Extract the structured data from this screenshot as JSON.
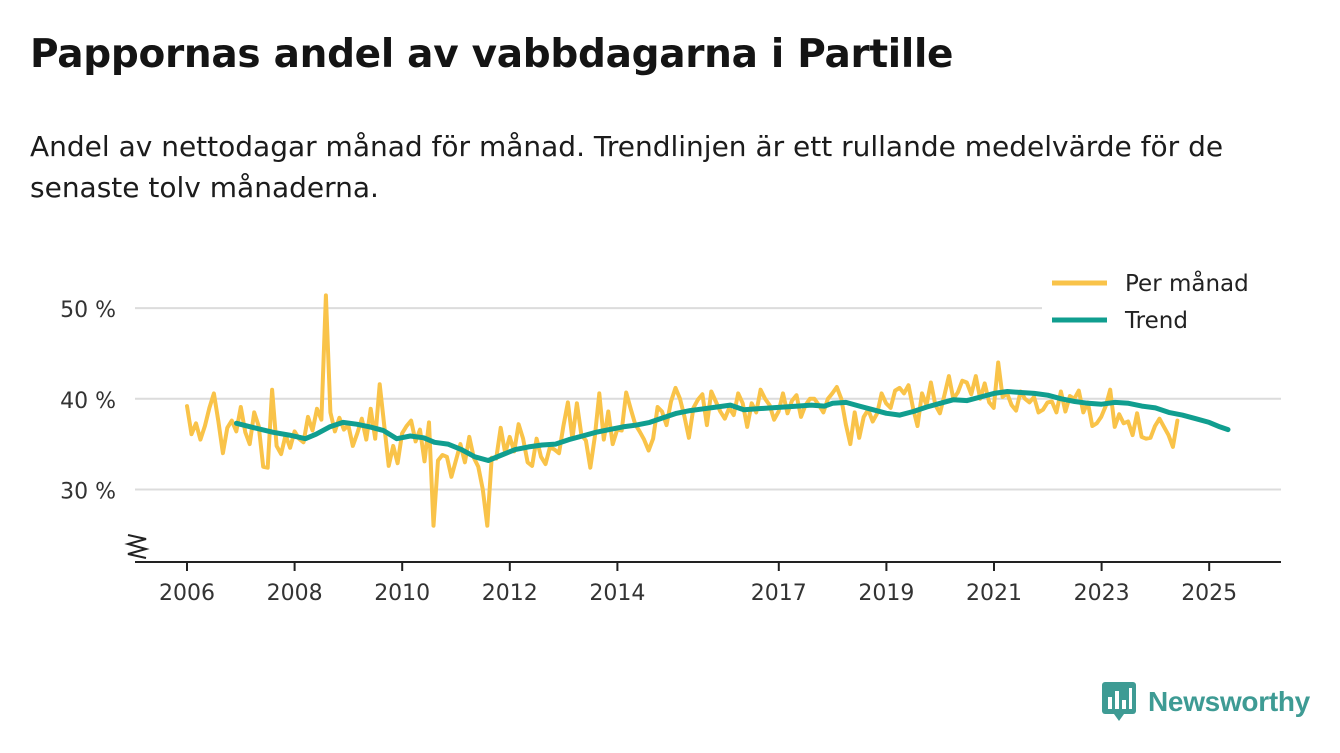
{
  "title": "Pappornas andel av vabbdagarna i Partille",
  "subtitle": "Andel av nettodagar månad för månad. Trendlinjen är ett rullande medelvärde för de senaste tolv månaderna.",
  "brand": "Newsworthy",
  "colors": {
    "monthly": "#f9c349",
    "trend": "#109e8f",
    "grid": "#dcdcdc",
    "brand": "#3e9b94"
  },
  "chart_data": {
    "type": "line",
    "ylim": [
      22,
      52
    ],
    "xlim": [
      2005.5,
      2026.3
    ],
    "y_ticks": [
      30,
      40,
      50
    ],
    "y_tick_labels": [
      "30 %",
      "40 %",
      "50 %"
    ],
    "x_ticks": [
      2006,
      2008,
      2010,
      2012,
      2014,
      2017,
      2019,
      2021,
      2023,
      2025
    ],
    "x_tick_labels": [
      "2006",
      "2008",
      "2010",
      "2012",
      "2014",
      "2017",
      "2019",
      "2021",
      "2023",
      "2025"
    ],
    "legend": [
      "Per månad",
      "Trend"
    ],
    "legend_position": "top-right",
    "series": [
      {
        "name": "Per månad",
        "x_start": 2006.0,
        "x_step": 0.0833,
        "values": [
          39.2,
          36.1,
          37.3,
          35.5,
          37.0,
          39.0,
          40.6,
          37.5,
          34.0,
          36.8,
          37.6,
          36.4,
          39.1,
          36.3,
          35.0,
          38.5,
          37.0,
          32.5,
          32.4,
          41.0,
          34.8,
          33.9,
          36.0,
          34.6,
          36.4,
          35.6,
          35.2,
          38.0,
          36.5,
          38.9,
          37.7,
          51.4,
          38.5,
          36.4,
          37.9,
          36.6,
          37.1,
          34.8,
          36.2,
          37.8,
          35.5,
          38.9,
          35.6,
          41.6,
          37.1,
          32.6,
          34.8,
          32.9,
          36.2,
          37.0,
          37.6,
          35.3,
          36.6,
          33.1,
          37.4,
          26.0,
          33.2,
          33.8,
          33.6,
          31.4,
          33.2,
          35.0,
          33.0,
          35.8,
          33.5,
          32.5,
          30.0,
          26.0,
          33.5,
          33.4,
          36.8,
          34.0,
          35.8,
          34.2,
          37.2,
          35.6,
          33.0,
          32.6,
          35.6,
          33.6,
          32.8,
          34.7,
          34.4,
          34.0,
          37.0,
          39.6,
          35.6,
          39.5,
          36.0,
          35.4,
          32.4,
          35.8,
          40.6,
          35.5,
          38.6,
          35.0,
          36.6,
          36.5,
          40.7,
          38.9,
          37.2,
          36.4,
          35.5,
          34.3,
          35.6,
          39.1,
          38.6,
          37.1,
          39.7,
          41.2,
          40.0,
          38.0,
          35.7,
          39.0,
          39.9,
          40.5,
          37.1,
          40.8,
          39.7,
          38.6,
          37.8,
          39.0,
          38.2,
          40.6,
          39.5,
          36.9,
          39.5,
          38.5,
          41.0,
          40.0,
          39.3,
          37.7,
          38.6,
          40.6,
          38.4,
          39.8,
          40.4,
          38.0,
          39.3,
          40.0,
          40.0,
          39.3,
          38.5,
          40.0,
          40.6,
          41.3,
          40.0,
          37.2,
          35.0,
          38.5,
          35.7,
          38.0,
          38.8,
          37.5,
          38.4,
          40.6,
          39.5,
          39.0,
          40.9,
          41.2,
          40.6,
          41.5,
          39.0,
          37.0,
          40.6,
          39.3,
          41.8,
          39.3,
          38.4,
          40.4,
          42.5,
          40.0,
          40.7,
          42.0,
          41.8,
          40.5,
          42.5,
          40.0,
          41.7,
          39.6,
          39.0,
          44.0,
          40.2,
          40.6,
          39.3,
          38.7,
          40.8,
          40.0,
          39.6,
          40.2,
          38.5,
          38.8,
          39.6,
          39.7,
          38.5,
          40.8,
          38.6,
          40.3,
          40.0,
          40.9,
          38.5,
          39.6,
          37.0,
          37.3,
          38.0,
          39.2,
          41.0,
          36.9,
          38.3,
          37.3,
          37.5,
          36.0,
          38.4,
          35.8,
          35.6,
          35.7,
          37.0,
          37.8,
          36.9,
          36.0,
          34.7,
          37.6
        ]
      },
      {
        "name": "Trend",
        "points": [
          [
            2006.92,
            37.3
          ],
          [
            2007.25,
            36.8
          ],
          [
            2007.6,
            36.3
          ],
          [
            2007.9,
            36.0
          ],
          [
            2008.2,
            35.6
          ],
          [
            2008.4,
            36.1
          ],
          [
            2008.65,
            36.9
          ],
          [
            2008.9,
            37.4
          ],
          [
            2009.15,
            37.2
          ],
          [
            2009.4,
            36.9
          ],
          [
            2009.65,
            36.5
          ],
          [
            2009.9,
            35.6
          ],
          [
            2010.15,
            35.9
          ],
          [
            2010.4,
            35.7
          ],
          [
            2010.6,
            35.2
          ],
          [
            2010.85,
            35.0
          ],
          [
            2011.1,
            34.4
          ],
          [
            2011.35,
            33.6
          ],
          [
            2011.6,
            33.2
          ],
          [
            2011.85,
            33.8
          ],
          [
            2012.1,
            34.4
          ],
          [
            2012.35,
            34.7
          ],
          [
            2012.6,
            34.9
          ],
          [
            2012.85,
            35.0
          ],
          [
            2013.1,
            35.5
          ],
          [
            2013.35,
            35.9
          ],
          [
            2013.6,
            36.3
          ],
          [
            2013.85,
            36.6
          ],
          [
            2014.1,
            36.9
          ],
          [
            2014.35,
            37.1
          ],
          [
            2014.6,
            37.4
          ],
          [
            2014.85,
            37.9
          ],
          [
            2015.1,
            38.4
          ],
          [
            2015.35,
            38.7
          ],
          [
            2015.6,
            38.9
          ],
          [
            2015.85,
            39.1
          ],
          [
            2016.1,
            39.3
          ],
          [
            2016.35,
            38.8
          ],
          [
            2016.6,
            38.9
          ],
          [
            2016.85,
            39.0
          ],
          [
            2017.1,
            39.1
          ],
          [
            2017.35,
            39.2
          ],
          [
            2017.6,
            39.3
          ],
          [
            2017.85,
            39.2
          ],
          [
            2018.0,
            39.5
          ],
          [
            2018.25,
            39.6
          ],
          [
            2018.5,
            39.2
          ],
          [
            2018.75,
            38.8
          ],
          [
            2019.0,
            38.4
          ],
          [
            2019.25,
            38.2
          ],
          [
            2019.5,
            38.6
          ],
          [
            2019.75,
            39.1
          ],
          [
            2020.0,
            39.5
          ],
          [
            2020.25,
            39.9
          ],
          [
            2020.5,
            39.8
          ],
          [
            2020.75,
            40.2
          ],
          [
            2021.0,
            40.6
          ],
          [
            2021.25,
            40.8
          ],
          [
            2021.5,
            40.7
          ],
          [
            2021.75,
            40.6
          ],
          [
            2022.0,
            40.4
          ],
          [
            2022.25,
            40.0
          ],
          [
            2022.5,
            39.7
          ],
          [
            2022.75,
            39.5
          ],
          [
            2023.0,
            39.4
          ],
          [
            2023.25,
            39.6
          ],
          [
            2023.5,
            39.5
          ],
          [
            2023.75,
            39.2
          ],
          [
            2024.0,
            39.0
          ],
          [
            2024.25,
            38.5
          ],
          [
            2024.5,
            38.2
          ],
          [
            2024.75,
            37.8
          ],
          [
            2025.0,
            37.4
          ],
          [
            2025.2,
            36.9
          ],
          [
            2025.35,
            36.6
          ]
        ]
      }
    ]
  }
}
